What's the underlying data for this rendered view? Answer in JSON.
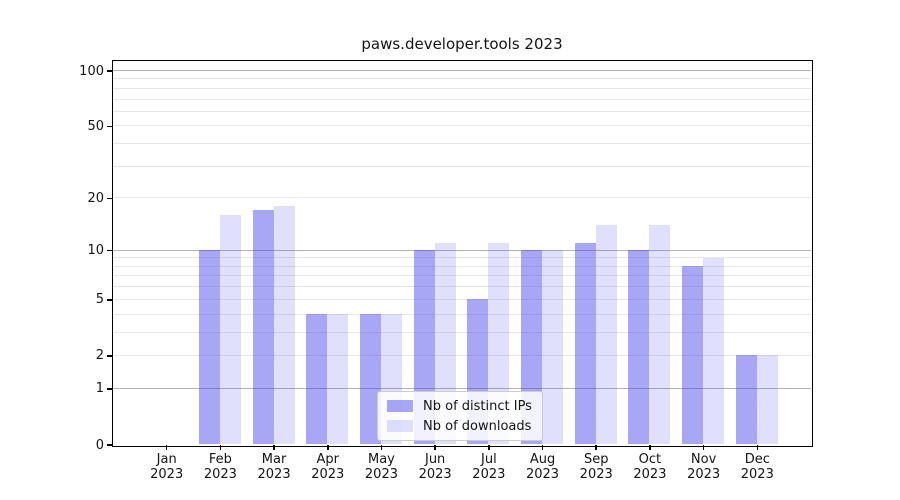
{
  "title": "paws.developer.tools 2023",
  "chart_data": {
    "type": "bar",
    "title": "paws.developer.tools 2023",
    "categories": [
      "Jan 2023",
      "Feb 2023",
      "Mar 2023",
      "Apr 2023",
      "May 2023",
      "Jun 2023",
      "Jul 2023",
      "Aug 2023",
      "Sep 2023",
      "Oct 2023",
      "Nov 2023",
      "Dec 2023"
    ],
    "month_labels": [
      "Jan",
      "Feb",
      "Mar",
      "Apr",
      "May",
      "Jun",
      "Jul",
      "Aug",
      "Sep",
      "Oct",
      "Nov",
      "Dec"
    ],
    "year_label": "2023",
    "series": [
      {
        "name": "Nb of distinct IPs",
        "color": "rgba(60,60,235,0.45)",
        "values": [
          0,
          10,
          17,
          4,
          4,
          10,
          5,
          10,
          11,
          10,
          8,
          2
        ]
      },
      {
        "name": "Nb of downloads",
        "color": "rgba(60,60,235,0.16)",
        "values": [
          0,
          16,
          18,
          4,
          4,
          11,
          11,
          10,
          14,
          14,
          9,
          2
        ]
      }
    ],
    "xlabel": "",
    "ylabel": "",
    "yscale": "log10(value+1)",
    "ylim": [
      0,
      113
    ],
    "yticks": [
      100,
      50,
      20,
      10,
      5,
      2,
      1,
      0
    ],
    "grid": "on",
    "grid_major": [
      1,
      10,
      100
    ],
    "grid_minor": [
      2,
      3,
      4,
      5,
      6,
      7,
      8,
      9,
      20,
      30,
      40,
      50,
      60,
      70,
      80,
      90
    ],
    "legend_position": "lower center"
  },
  "colors": {
    "background": "#ffffff",
    "axis": "#000000",
    "grid_major": "#b3b3b3",
    "grid_minor": "#e8e8e8",
    "text": "#141414",
    "legend_border": "#cccccc",
    "legend_bg": "rgba(255,255,255,0.85)",
    "bar_distinct_ips": "rgba(60,60,235,0.45)",
    "bar_downloads": "rgba(60,60,235,0.16)"
  }
}
